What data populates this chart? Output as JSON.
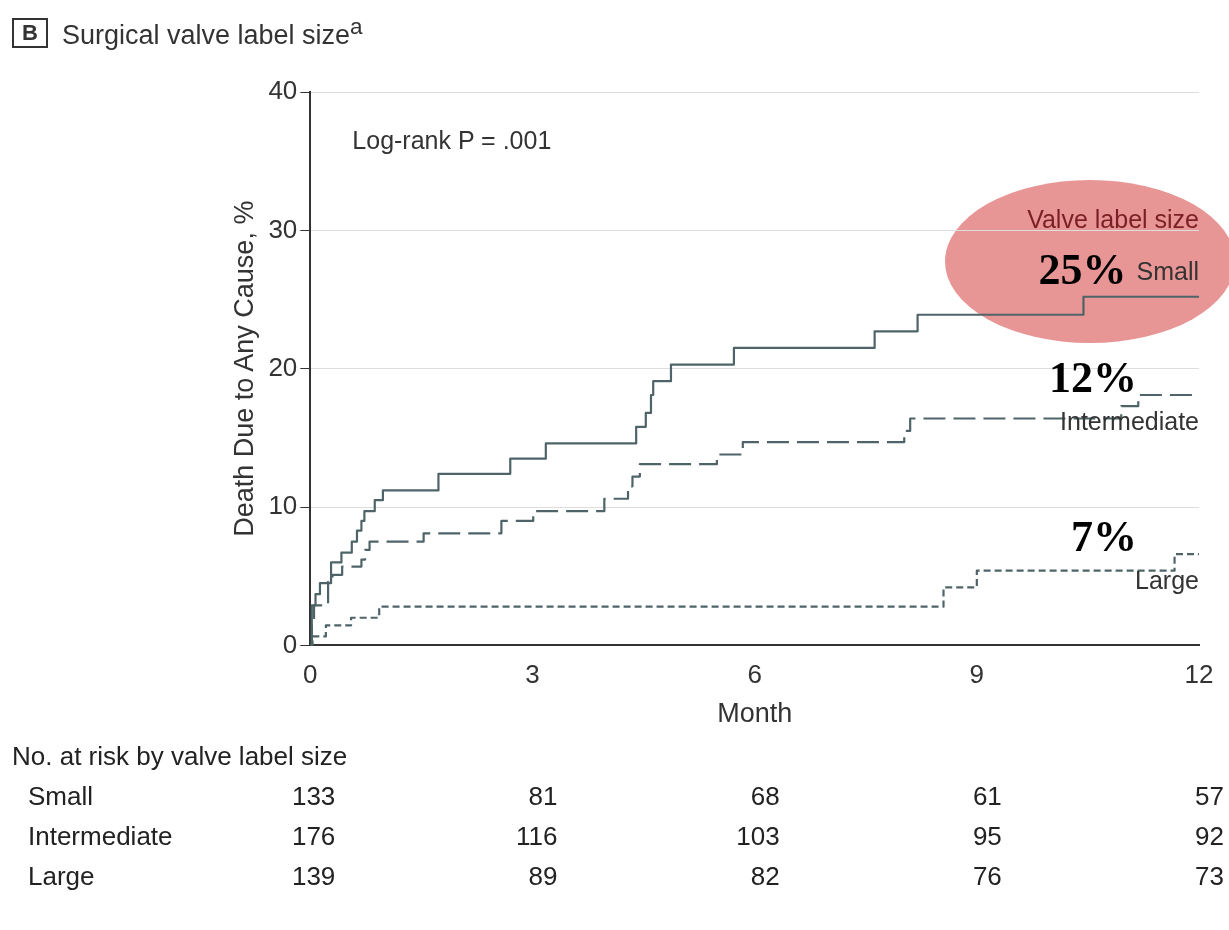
{
  "chart_data": {
    "type": "step",
    "title": "Surgical valve label size$^{a}$",
    "xlabel": "Month",
    "ylabel": "Death Due to Any Cause, %",
    "legend_title": "Valve label size",
    "xlim": [
      0,
      12
    ],
    "xticks": [
      0,
      3,
      6,
      9,
      12
    ],
    "ylim": [
      0,
      40
    ],
    "yticks": [
      0,
      10,
      20,
      30,
      40
    ],
    "grid": "y",
    "legend": false,
    "annotations": [
      "B",
      "Log-rank P = .001",
      "25%",
      "12%",
      "7%",
      "No. at risk by valve label size",
      "Small 133 81 68 61 57",
      "Intermediate 176 116 103 95 92",
      "Large 139 89 82 76 73"
    ],
    "series": [
      {
        "name": "Small",
        "color": "#4f6468",
        "line_style": "solid",
        "x": [
          0,
          0.02,
          0.07,
          0.13,
          0.28,
          0.42,
          0.56,
          0.63,
          0.69,
          0.73,
          0.87,
          0.98,
          1.73,
          2.7,
          3.18,
          4.4,
          4.53,
          4.6,
          4.63,
          4.87,
          5.72,
          7.62,
          8.2,
          10.44,
          12
        ],
        "values": [
          0,
          2.9,
          3.7,
          4.5,
          6.0,
          6.7,
          7.5,
          8.3,
          9.0,
          9.7,
          10.5,
          11.2,
          12.4,
          13.5,
          14.6,
          15.8,
          16.8,
          18.1,
          19.1,
          20.3,
          21.5,
          22.7,
          23.9,
          25.2,
          25.2
        ]
      },
      {
        "name": "Intermediate",
        "color": "#4f6468",
        "line_style": "dashed",
        "x": [
          0,
          0.02,
          0.05,
          0.24,
          0.3,
          0.43,
          0.69,
          0.74,
          0.8,
          1.53,
          2.58,
          3.01,
          3.97,
          4.29,
          4.35,
          4.45,
          5.49,
          5.84,
          8.02,
          8.1,
          10.95,
          11.18,
          12
        ],
        "values": [
          0,
          1.5,
          2.9,
          4.6,
          5.1,
          5.7,
          6.2,
          6.9,
          7.5,
          8.1,
          9.0,
          9.7,
          10.6,
          11.5,
          12.2,
          13.1,
          13.8,
          14.7,
          15.5,
          16.4,
          17.3,
          18.1,
          18.1
        ]
      },
      {
        "name": "Large",
        "color": "#4f6468",
        "line_style": "dotted",
        "x": [
          0,
          0.03,
          0.21,
          0.55,
          0.93,
          8.55,
          9.0,
          11.67,
          12
        ],
        "values": [
          0,
          0.65,
          1.45,
          2.0,
          2.8,
          4.2,
          5.4,
          6.6,
          6.6
        ]
      }
    ]
  }
}
